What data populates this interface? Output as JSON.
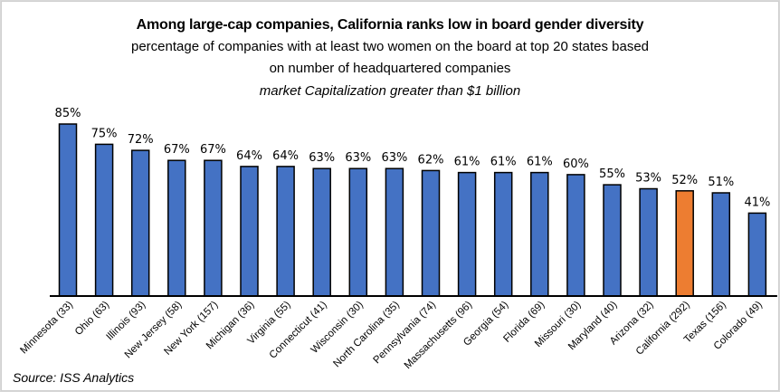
{
  "chart_data": {
    "type": "bar",
    "title": "Among large-cap companies, California ranks low in board gender diversity",
    "subtitle_lines": [
      "percentage of companies with at least two women on the board at top 20 states based",
      "on number of headquartered companies",
      "market Capitalization greater than $1 billion"
    ],
    "xlabel": "",
    "ylabel": "",
    "ylim": [
      0,
      85
    ],
    "grid": false,
    "legend": "none",
    "categories": [
      "Minnesota (33)",
      "Ohio (63)",
      "Illinois (93)",
      "New Jersey (58)",
      "New York (157)",
      "Michigan (36)",
      "Virginia (55)",
      "Connecticut (41)",
      "Wisconsin (30)",
      "North Carolina (35)",
      "Pennsylvania (74)",
      "Massachusetts (96)",
      "Georgia (54)",
      "Florida (69)",
      "Missouri (30)",
      "Maryland (40)",
      "Arizona (32)",
      "California (292)",
      "Texas (156)",
      "Colorado (49)"
    ],
    "values": [
      85,
      75,
      72,
      67,
      67,
      64,
      64,
      63,
      63,
      63,
      62,
      61,
      61,
      61,
      60,
      55,
      53,
      52,
      51,
      41
    ],
    "data_labels": [
      "85%",
      "75%",
      "72%",
      "67%",
      "67%",
      "64%",
      "64%",
      "63%",
      "63%",
      "63%",
      "62%",
      "61%",
      "61%",
      "61%",
      "60%",
      "55%",
      "53%",
      "52%",
      "51%",
      "41%"
    ],
    "highlight_category": "California (292)",
    "colors": {
      "default": "#4472c4",
      "highlight": "#ed7d31",
      "outline": "#000000"
    },
    "source": "Source: ISS Analytics"
  }
}
